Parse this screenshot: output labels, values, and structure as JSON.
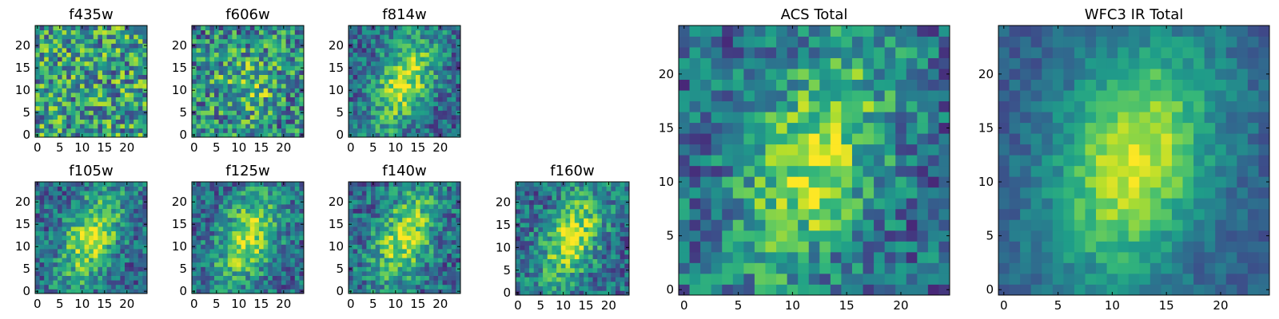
{
  "chart_data": [
    {
      "type": "heatmap",
      "title": "f435w",
      "xticks": [
        "0",
        "5",
        "10",
        "15",
        "20"
      ],
      "yticks": [
        "0",
        "5",
        "10",
        "15",
        "20"
      ],
      "xlim": [
        0,
        25
      ],
      "ylim": [
        0,
        25
      ],
      "grid": false,
      "colormap": "viridis",
      "pattern": "noise"
    },
    {
      "type": "heatmap",
      "title": "f606w",
      "xticks": [
        "0",
        "5",
        "10",
        "15",
        "20"
      ],
      "yticks": [
        "0",
        "5",
        "10",
        "15",
        "20"
      ],
      "xlim": [
        0,
        25
      ],
      "ylim": [
        0,
        25
      ],
      "grid": false,
      "colormap": "viridis",
      "pattern": "faint-blob"
    },
    {
      "type": "heatmap",
      "title": "f814w",
      "xticks": [
        "0",
        "5",
        "10",
        "15",
        "20"
      ],
      "yticks": [
        "0",
        "5",
        "10",
        "15",
        "20"
      ],
      "xlim": [
        0,
        25
      ],
      "ylim": [
        0,
        25
      ],
      "grid": false,
      "colormap": "viridis",
      "pattern": "diagonal-blob"
    },
    {
      "type": "heatmap",
      "title": "f105w",
      "xticks": [
        "0",
        "5",
        "10",
        "15",
        "20"
      ],
      "yticks": [
        "0",
        "5",
        "10",
        "15",
        "20"
      ],
      "xlim": [
        0,
        25
      ],
      "ylim": [
        0,
        25
      ],
      "grid": false,
      "colormap": "viridis",
      "pattern": "diagonal-blob"
    },
    {
      "type": "heatmap",
      "title": "f125w",
      "xticks": [
        "0",
        "5",
        "10",
        "15",
        "20"
      ],
      "yticks": [
        "0",
        "5",
        "10",
        "15",
        "20"
      ],
      "xlim": [
        0,
        25
      ],
      "ylim": [
        0,
        25
      ],
      "grid": false,
      "colormap": "viridis",
      "pattern": "diagonal-blob"
    },
    {
      "type": "heatmap",
      "title": "f140w",
      "xticks": [
        "0",
        "5",
        "10",
        "15",
        "20"
      ],
      "yticks": [
        "0",
        "5",
        "10",
        "15",
        "20"
      ],
      "xlim": [
        0,
        25
      ],
      "ylim": [
        0,
        25
      ],
      "grid": false,
      "colormap": "viridis",
      "pattern": "diagonal-blob"
    },
    {
      "type": "heatmap",
      "title": "f160w",
      "xticks": [
        "0",
        "5",
        "10",
        "15",
        "20"
      ],
      "yticks": [
        "0",
        "5",
        "10",
        "15",
        "20"
      ],
      "xlim": [
        0,
        25
      ],
      "ylim": [
        0,
        25
      ],
      "grid": false,
      "colormap": "viridis",
      "pattern": "diagonal-blob"
    },
    {
      "type": "heatmap",
      "title": "ACS Total",
      "xticks": [
        "0",
        "5",
        "10",
        "15",
        "20"
      ],
      "yticks": [
        "0",
        "5",
        "10",
        "15",
        "20"
      ],
      "xlim": [
        0,
        25
      ],
      "ylim": [
        0,
        25
      ],
      "grid": false,
      "colormap": "viridis",
      "pattern": "diagonal-blob"
    },
    {
      "type": "heatmap",
      "title": "WFC3 IR Total",
      "xticks": [
        "0",
        "5",
        "10",
        "15",
        "20"
      ],
      "yticks": [
        "0",
        "5",
        "10",
        "15",
        "20"
      ],
      "xlim": [
        0,
        25
      ],
      "ylim": [
        0,
        25
      ],
      "grid": false,
      "colormap": "viridis",
      "pattern": "smooth-blob"
    }
  ],
  "colors": {
    "viridis_low": "#440154",
    "viridis_mid": "#21918c",
    "viridis_high": "#fde725",
    "axes_frame": "#000000"
  }
}
